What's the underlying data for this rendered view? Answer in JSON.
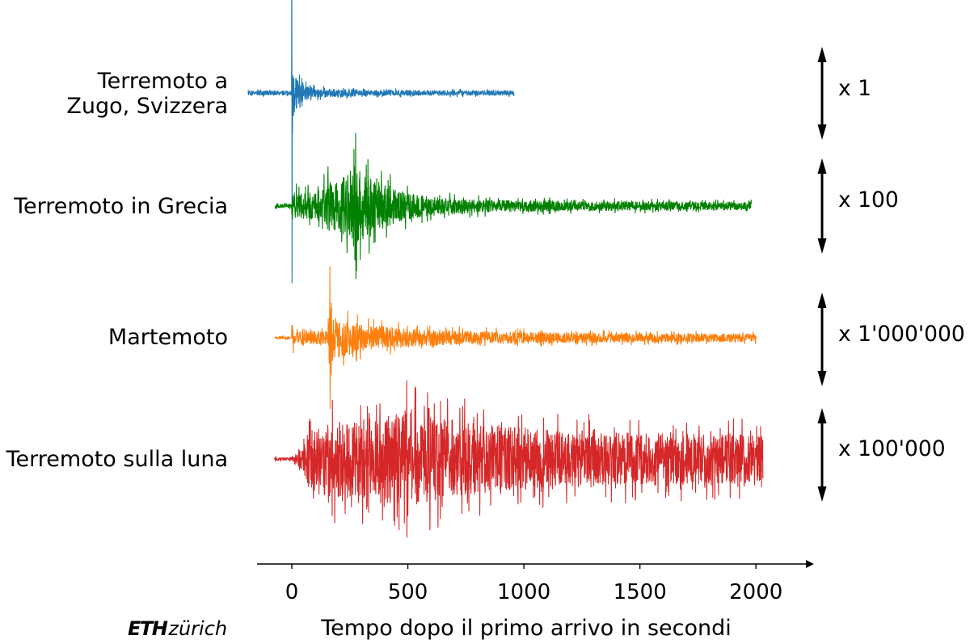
{
  "chart_data": {
    "type": "line",
    "xlabel": "Tempo dopo il primo arrivo in secondi",
    "xlim": [
      -150,
      2250
    ],
    "xticks": [
      0,
      500,
      1000,
      1500,
      2000
    ],
    "xtick_labels": [
      "0",
      "500",
      "1000",
      "1500",
      "2000"
    ],
    "grid": false,
    "series": [
      {
        "label_lines": [
          "Terremoto a",
          "Zugo, Svizzera"
        ],
        "color": "#1f77b4",
        "scale": "x 1",
        "x_range": [
          -188,
          958
        ],
        "amplitude_envelope": [
          [
            -188,
            0.02
          ],
          [
            -1,
            0.02
          ],
          [
            0,
            1.0
          ],
          [
            1,
            0.22
          ],
          [
            12,
            0.2
          ],
          [
            25,
            0.12
          ],
          [
            50,
            0.07
          ],
          [
            100,
            0.04
          ],
          [
            300,
            0.025
          ],
          [
            958,
            0.02
          ]
        ]
      },
      {
        "label_lines": [
          "Terremoto in Grecia"
        ],
        "color": "#008000",
        "scale": "x 100",
        "x_range": [
          -72,
          1980
        ],
        "amplitude_envelope": [
          [
            -72,
            0.04
          ],
          [
            -1,
            0.04
          ],
          [
            0,
            0.3
          ],
          [
            40,
            0.32
          ],
          [
            100,
            0.3
          ],
          [
            140,
            0.45
          ],
          [
            160,
            0.6
          ],
          [
            200,
            0.55
          ],
          [
            250,
            0.8
          ],
          [
            275,
            1.0
          ],
          [
            300,
            0.75
          ],
          [
            350,
            0.6
          ],
          [
            420,
            0.45
          ],
          [
            500,
            0.3
          ],
          [
            600,
            0.22
          ],
          [
            800,
            0.15
          ],
          [
            1000,
            0.12
          ],
          [
            1215,
            0.11
          ],
          [
            1220,
            0.2
          ],
          [
            1225,
            0.11
          ],
          [
            1500,
            0.1
          ],
          [
            1980,
            0.09
          ]
        ]
      },
      {
        "label_lines": [
          "Martemoto"
        ],
        "color": "#ff7f0e",
        "scale": "x 1'000'000",
        "x_range": [
          -72,
          2000
        ],
        "amplitude_envelope": [
          [
            -72,
            0.03
          ],
          [
            -1,
            0.03
          ],
          [
            0,
            0.36
          ],
          [
            10,
            0.15
          ],
          [
            155,
            0.15
          ],
          [
            164,
            1.0
          ],
          [
            172,
            0.5
          ],
          [
            240,
            0.42
          ],
          [
            320,
            0.28
          ],
          [
            500,
            0.22
          ],
          [
            700,
            0.16
          ],
          [
            1000,
            0.13
          ],
          [
            1500,
            0.1
          ],
          [
            2000,
            0.09
          ]
        ]
      },
      {
        "label_lines": [
          "Terremoto sulla luna"
        ],
        "color": "#d62728",
        "scale": "x 100'000",
        "x_range": [
          -75,
          2030
        ],
        "amplitude_envelope": [
          [
            -75,
            0.03
          ],
          [
            -5,
            0.03
          ],
          [
            20,
            0.15
          ],
          [
            50,
            0.35
          ],
          [
            70,
            0.55
          ],
          [
            120,
            0.8
          ],
          [
            300,
            0.85
          ],
          [
            495,
            1.0
          ],
          [
            700,
            0.82
          ],
          [
            900,
            0.7
          ],
          [
            1200,
            0.58
          ],
          [
            1600,
            0.55
          ],
          [
            2030,
            0.52
          ]
        ]
      }
    ]
  },
  "logo": {
    "eth": "ETH",
    "zurich": "zürich"
  }
}
